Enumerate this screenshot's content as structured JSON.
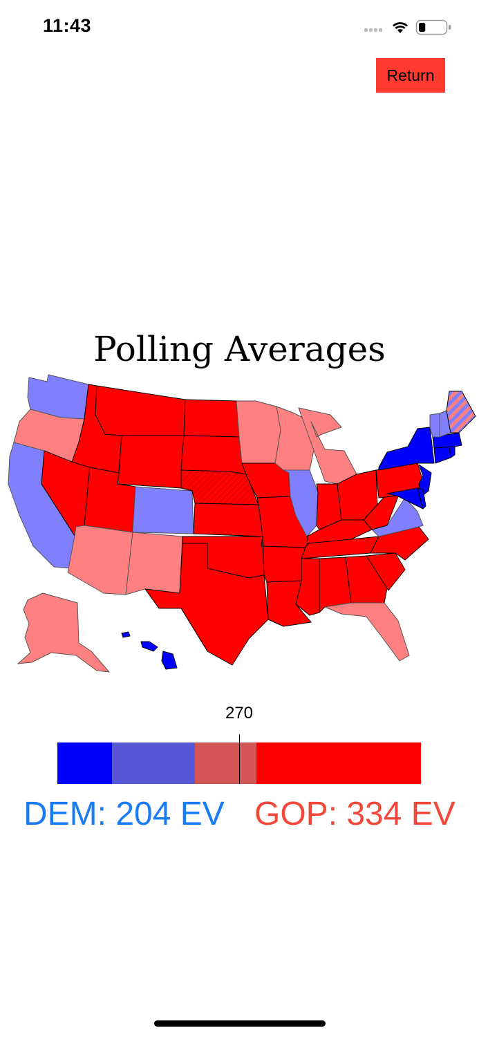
{
  "status_bar": {
    "time": "11:43",
    "icons": [
      "cellular-signal-icon",
      "wifi-icon",
      "battery-icon"
    ],
    "battery_level": 0.25
  },
  "header": {
    "return_label": "Return"
  },
  "page": {
    "title": "Polling Averages"
  },
  "colors": {
    "safe_dem": "#0000ff",
    "lean_dem": "#8080ff",
    "lean_gop": "#ff8080",
    "safe_gop": "#ff0000",
    "bar_safe_dem": "#0000ff",
    "bar_lean_dem": "#5757d6",
    "bar_lean_gop": "#d45656",
    "bar_safe_gop": "#ff0000",
    "dem_text": "#1a7cf5",
    "gop_text": "#f2483c",
    "return_button": "#ff3b30"
  },
  "map": {
    "states": {
      "WA": "lean_dem",
      "OR": "lean_gop",
      "CA": "lean_dem",
      "NV": "safe_gop",
      "ID": "safe_gop",
      "MT": "safe_gop",
      "WY": "safe_gop",
      "UT": "safe_gop",
      "AZ": "lean_gop",
      "NM": "lean_gop",
      "CO": "lean_dem",
      "ND": "safe_gop",
      "SD": "safe_gop",
      "NE": "safe_gop",
      "KS": "safe_gop",
      "OK": "safe_gop",
      "TX": "safe_gop",
      "MN": "lean_gop",
      "IA": "safe_gop",
      "MO": "safe_gop",
      "AR": "safe_gop",
      "LA": "safe_gop",
      "WI": "lean_gop",
      "IL": "lean_dem",
      "MI": "lean_gop",
      "IN": "safe_gop",
      "OH": "safe_gop",
      "KY": "safe_gop",
      "TN": "safe_gop",
      "MS": "safe_gop",
      "AL": "safe_gop",
      "GA": "safe_gop",
      "FL": "lean_gop",
      "SC": "safe_gop",
      "NC": "safe_gop",
      "VA": "lean_dem",
      "WV": "safe_gop",
      "PA": "safe_gop",
      "NY": "safe_dem",
      "NJ": "safe_dem",
      "MD": "safe_dem",
      "DE": "safe_dem",
      "CT": "safe_dem",
      "RI": "safe_dem",
      "MA": "safe_dem",
      "VT": "lean_dem",
      "NH": "lean_dem",
      "ME": "split",
      "AK": "lean_gop",
      "HI": "safe_dem"
    }
  },
  "ev_bar": {
    "threshold_label": "270",
    "total": 538,
    "threshold": 270,
    "segments": [
      {
        "key": "safe_dem",
        "ev": 81
      },
      {
        "key": "lean_dem",
        "ev": 123
      },
      {
        "key": "lean_gop",
        "ev": 91
      },
      {
        "key": "safe_gop",
        "ev": 243
      }
    ]
  },
  "totals": {
    "dem": "DEM: 204 EV",
    "gop": "GOP: 334 EV"
  }
}
